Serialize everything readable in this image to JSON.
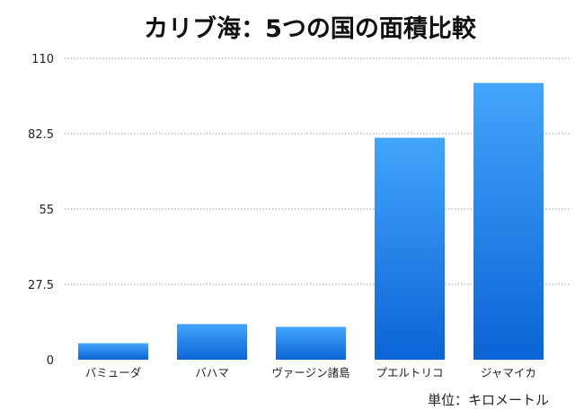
{
  "chart_data": {
    "type": "bar",
    "title": "カリブ海：5つの国の面積比較",
    "unit_label": "単位：キロメートル",
    "categories": [
      "バミューダ",
      "バハマ",
      "ヴァージン諸島",
      "プエルトリコ",
      "ジャマイカ"
    ],
    "values": [
      6,
      13,
      12,
      81,
      101
    ],
    "ylim": [
      0,
      110
    ],
    "yticks": [
      "0",
      "27.5",
      "55",
      "82.5",
      "110"
    ],
    "grid": true,
    "legend": "none",
    "colors": {
      "bar_top": "#42a5fb",
      "bar_bottom": "#0b64d6",
      "grid": "#9a9a9a"
    }
  }
}
